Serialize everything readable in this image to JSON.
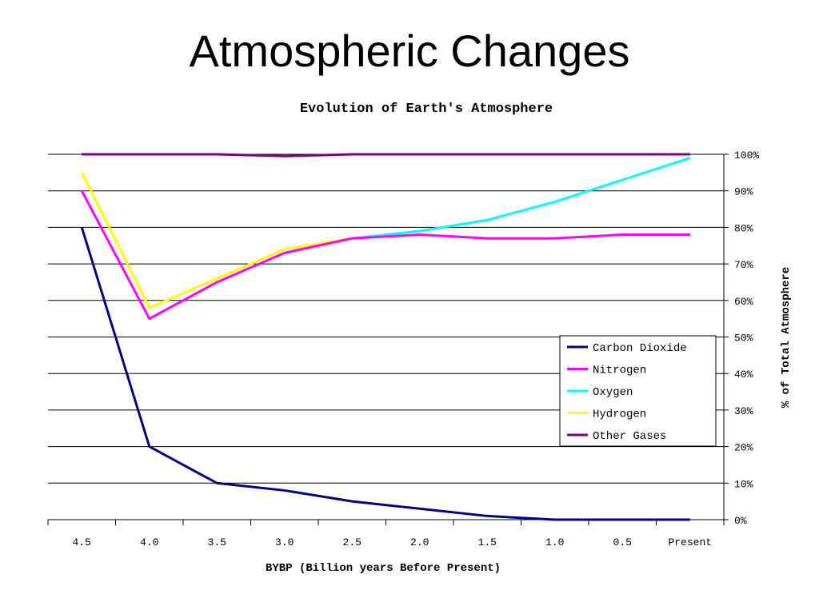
{
  "slide": {
    "title": "Atmospheric Changes"
  },
  "chart_data": {
    "type": "line",
    "title": "Evolution of Earth's Atmosphere",
    "xlabel": "BYBP (Billion years Before Present)",
    "ylabel": "% of Total Atmosphere",
    "categories": [
      "4.5",
      "4.0",
      "3.5",
      "3.0",
      "2.5",
      "2.0",
      "1.5",
      "1.0",
      "0.5",
      "Present"
    ],
    "y_ticks": [
      "0%",
      "10%",
      "20%",
      "30%",
      "40%",
      "50%",
      "60%",
      "70%",
      "80%",
      "90%",
      "100%"
    ],
    "ylim": [
      0,
      100
    ],
    "y_axis_side": "right",
    "grid": true,
    "legend_position": "lower-right",
    "series": [
      {
        "name": "Carbon Dioxide",
        "color": "#000080",
        "values": [
          80,
          20,
          10,
          8,
          5,
          3,
          1,
          0,
          0,
          0
        ]
      },
      {
        "name": "Nitrogen",
        "color": "#FF00FF",
        "values": [
          90,
          55,
          65,
          73,
          77,
          78,
          77,
          77,
          78,
          78
        ]
      },
      {
        "name": "Oxygen",
        "color": "#00FFFF",
        "values": [
          null,
          null,
          null,
          null,
          77,
          79,
          82,
          87,
          93,
          99
        ]
      },
      {
        "name": "Hydrogen",
        "color": "#FFFF00",
        "values": [
          95,
          58,
          66,
          74,
          77,
          78,
          77,
          77,
          78,
          78
        ]
      },
      {
        "name": "Other Gases",
        "color": "#800080",
        "values": [
          100,
          100,
          100,
          99.5,
          100,
          100,
          100,
          100,
          100,
          100
        ]
      }
    ]
  }
}
